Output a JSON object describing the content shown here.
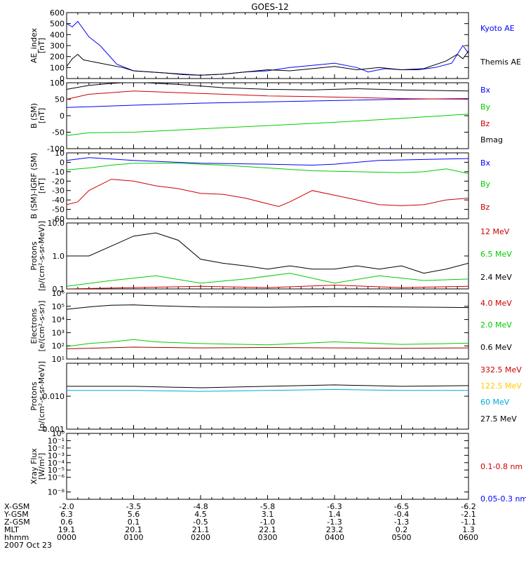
{
  "title": "GOES-12",
  "colors": {
    "black": "#000000",
    "blue": "#0000ff",
    "green": "#00cc00",
    "red": "#cc0000",
    "darkred": "#990000",
    "lime": "#33dd33",
    "cyan": "#00aadd",
    "yellow": "#ffcc00"
  },
  "chart_data": [
    {
      "type": "line",
      "ylabel": [
        "AE_index",
        "[nT]"
      ],
      "yscale": "linear",
      "ylim": [
        0,
        600
      ],
      "yticks": [
        "0",
        "100",
        "200",
        "300",
        "400",
        "500",
        "600"
      ],
      "yticks_values": [
        0,
        100,
        200,
        300,
        400,
        500,
        600
      ],
      "legend": [
        {
          "name": "Kyoto AE",
          "color": "#0000ff"
        },
        {
          "name": "Themis AE",
          "color": "#000000"
        }
      ],
      "series": [
        {
          "name": "Kyoto AE",
          "color": "#0000ff",
          "x": [
            0,
            5,
            10,
            20,
            30,
            45,
            60,
            75,
            90,
            105,
            120,
            140,
            160,
            180,
            200,
            220,
            240,
            260,
            270,
            285,
            300,
            315,
            330,
            345,
            355,
            360
          ],
          "y": [
            500,
            470,
            520,
            380,
            300,
            130,
            70,
            60,
            50,
            40,
            30,
            40,
            60,
            70,
            100,
            120,
            140,
            100,
            60,
            90,
            80,
            80,
            100,
            140,
            300,
            230
          ]
        },
        {
          "name": "Themis AE",
          "color": "#000000",
          "x": [
            0,
            5,
            10,
            15,
            25,
            35,
            50,
            60,
            75,
            90,
            105,
            120,
            140,
            160,
            180,
            200,
            220,
            240,
            260,
            280,
            300,
            320,
            340,
            350,
            355,
            360
          ],
          "y": [
            110,
            180,
            220,
            170,
            150,
            130,
            100,
            70,
            60,
            50,
            35,
            30,
            40,
            60,
            80,
            70,
            90,
            110,
            80,
            100,
            80,
            90,
            160,
            220,
            180,
            250
          ]
        }
      ]
    },
    {
      "type": "line",
      "ylabel": [
        "B (SM)",
        "[nT]"
      ],
      "yscale": "linear",
      "ylim": [
        -100,
        100
      ],
      "yticks": [
        "-100",
        "-50",
        "0",
        "50",
        "100"
      ],
      "yticks_values": [
        -100,
        -50,
        0,
        50,
        100
      ],
      "legend": [
        {
          "name": "Bx",
          "color": "#0000ff"
        },
        {
          "name": "By",
          "color": "#00cc00"
        },
        {
          "name": "Bz",
          "color": "#cc0000"
        },
        {
          "name": "Bmag",
          "color": "#000000"
        }
      ],
      "series": [
        {
          "name": "Bx",
          "color": "#0000ff",
          "x": [
            0,
            60,
            120,
            180,
            240,
            300,
            360
          ],
          "y": [
            25,
            32,
            38,
            42,
            46,
            50,
            52
          ]
        },
        {
          "name": "By",
          "color": "#00cc00",
          "x": [
            0,
            20,
            60,
            120,
            180,
            240,
            300,
            360
          ],
          "y": [
            -60,
            -52,
            -50,
            -40,
            -30,
            -20,
            -8,
            5
          ]
        },
        {
          "name": "Bz",
          "color": "#cc0000",
          "x": [
            0,
            20,
            40,
            60,
            100,
            140,
            180,
            220,
            260,
            300,
            360
          ],
          "y": [
            50,
            65,
            70,
            75,
            70,
            65,
            60,
            58,
            55,
            52,
            50
          ]
        },
        {
          "name": "Bmag",
          "color": "#000000",
          "x": [
            0,
            20,
            40,
            60,
            100,
            140,
            180,
            220,
            260,
            300,
            360
          ],
          "y": [
            80,
            92,
            98,
            102,
            95,
            85,
            80,
            78,
            82,
            78,
            75
          ]
        }
      ]
    },
    {
      "type": "line",
      "ylabel": [
        "B (SM)-IGRF (SM)",
        "[nT]"
      ],
      "yscale": "linear",
      "ylim": [
        -60,
        10
      ],
      "yticks": [
        "-60",
        "-50",
        "-40",
        "-30",
        "-20",
        "-10",
        "0",
        "10"
      ],
      "yticks_values": [
        -60,
        -50,
        -40,
        -30,
        -20,
        -10,
        0,
        10
      ],
      "legend": [
        {
          "name": "Bx",
          "color": "#0000ff"
        },
        {
          "name": "By",
          "color": "#00cc00"
        },
        {
          "name": "Bz",
          "color": "#cc0000"
        }
      ],
      "series": [
        {
          "name": "Bx",
          "color": "#0000ff",
          "x": [
            0,
            20,
            60,
            120,
            180,
            220,
            240,
            280,
            320,
            360
          ],
          "y": [
            2,
            5,
            2,
            -1,
            -2,
            -3,
            -2,
            2,
            3,
            4
          ]
        },
        {
          "name": "By",
          "color": "#00cc00",
          "x": [
            0,
            20,
            40,
            60,
            100,
            140,
            180,
            220,
            260,
            300,
            320,
            340,
            360
          ],
          "y": [
            -8,
            -6,
            -3,
            -1,
            -1,
            -3,
            -6,
            -9,
            -10,
            -11,
            -10,
            -7,
            -12
          ]
        },
        {
          "name": "Bz",
          "color": "#cc0000",
          "x": [
            0,
            10,
            20,
            40,
            60,
            80,
            100,
            120,
            140,
            160,
            180,
            190,
            200,
            220,
            240,
            260,
            280,
            300,
            320,
            340,
            360
          ],
          "y": [
            -45,
            -42,
            -30,
            -18,
            -20,
            -25,
            -28,
            -33,
            -34,
            -38,
            -44,
            -47,
            -42,
            -30,
            -35,
            -40,
            -45,
            -46,
            -45,
            -40,
            -38
          ]
        }
      ]
    },
    {
      "type": "line",
      "ylabel": [
        "Protons",
        "[p/(cm²-s-sr-MeV)]"
      ],
      "yscale": "log",
      "ylim": [
        0.1,
        10
      ],
      "yticks": [
        "0.1",
        "1.0",
        "10.0"
      ],
      "yticks_values": [
        0.1,
        1,
        10
      ],
      "legend": [
        {
          "name": "12 MeV",
          "color": "#cc0000"
        },
        {
          "name": "6.5 MeV",
          "color": "#00cc00"
        },
        {
          "name": "2.4 MeV",
          "color": "#000000"
        }
      ],
      "series": [
        {
          "name": "2.4 MeV",
          "color": "#000000",
          "x": [
            0,
            20,
            40,
            60,
            80,
            100,
            120,
            140,
            160,
            180,
            200,
            220,
            240,
            260,
            280,
            300,
            320,
            340,
            360
          ],
          "y": [
            1,
            1,
            2,
            4,
            5,
            3,
            0.8,
            0.6,
            0.5,
            0.4,
            0.5,
            0.4,
            0.4,
            0.5,
            0.4,
            0.5,
            0.3,
            0.4,
            0.6
          ]
        },
        {
          "name": "6.5 MeV",
          "color": "#00cc00",
          "x": [
            0,
            40,
            80,
            120,
            160,
            200,
            240,
            280,
            320,
            360
          ],
          "y": [
            0.12,
            0.18,
            0.25,
            0.15,
            0.2,
            0.3,
            0.15,
            0.25,
            0.18,
            0.2
          ]
        },
        {
          "name": "12 MeV",
          "color": "#cc0000",
          "x": [
            0,
            60,
            120,
            180,
            240,
            300,
            360
          ],
          "y": [
            0.1,
            0.11,
            0.12,
            0.11,
            0.13,
            0.11,
            0.12
          ]
        }
      ]
    },
    {
      "type": "line",
      "ylabel": [
        "Electrons",
        "[e/(cm²-s-sr)]"
      ],
      "yscale": "log",
      "ylim": [
        10,
        1000000
      ],
      "yticks": [
        "10¹",
        "10²",
        "10³",
        "10⁴",
        "10⁵",
        "10⁶"
      ],
      "yticks_values": [
        10,
        100,
        1000,
        10000,
        100000,
        1000000
      ],
      "legend": [
        {
          "name": "4.0 MeV",
          "color": "#cc0000"
        },
        {
          "name": "2.0 MeV",
          "color": "#00cc00"
        },
        {
          "name": "0.6 MeV",
          "color": "#000000"
        }
      ],
      "series": [
        {
          "name": "0.6 MeV",
          "color": "#000000",
          "x": [
            0,
            20,
            40,
            60,
            80,
            120,
            180,
            240,
            300,
            360
          ],
          "y": [
            60000,
            90000,
            120000,
            130000,
            110000,
            90000,
            85000,
            95000,
            90000,
            80000
          ]
        },
        {
          "name": "2.0 MeV",
          "color": "#00cc00",
          "x": [
            0,
            20,
            40,
            60,
            80,
            120,
            180,
            240,
            300,
            360
          ],
          "y": [
            90,
            150,
            200,
            300,
            200,
            150,
            120,
            200,
            130,
            160
          ]
        },
        {
          "name": "4.0 MeV",
          "color": "#990000",
          "x": [
            0,
            60,
            120,
            180,
            240,
            300,
            360
          ],
          "y": [
            60,
            80,
            70,
            75,
            70,
            65,
            70
          ]
        }
      ]
    },
    {
      "type": "line",
      "ylabel": [
        "Protons",
        "[p/(cm²-s-sr-MeV)]"
      ],
      "yscale": "log",
      "ylim": [
        0.001,
        0.1
      ],
      "yticks": [
        "0.001",
        "0.010"
      ],
      "yticks_values": [
        0.001,
        0.01
      ],
      "legend": [
        {
          "name": "332.5 MeV",
          "color": "#cc0000"
        },
        {
          "name": "122.5 MeV",
          "color": "#ffcc00"
        },
        {
          "name": "60 MeV",
          "color": "#00aadd"
        },
        {
          "name": "27.5 MeV",
          "color": "#000000"
        }
      ],
      "series": [
        {
          "name": "27.5 MeV",
          "color": "#000000",
          "x": [
            0,
            60,
            120,
            180,
            240,
            300,
            360
          ],
          "y": [
            0.02,
            0.02,
            0.018,
            0.02,
            0.022,
            0.02,
            0.021
          ]
        },
        {
          "name": "60 MeV",
          "color": "#00aadd",
          "x": [
            0,
            60,
            120,
            180,
            240,
            300,
            360
          ],
          "y": [
            0.015,
            0.015,
            0.014,
            0.015,
            0.016,
            0.015,
            0.015
          ]
        }
      ]
    },
    {
      "type": "line",
      "ylabel": [
        "Xray Flux",
        "[W/m²]"
      ],
      "yscale": "log",
      "ylim": [
        1e-09,
        1
      ],
      "yticks": [
        "10⁻⁸",
        "10⁻⁶",
        "10⁻⁵",
        "10⁻⁴",
        "10⁻³",
        "10⁻²",
        "10⁻¹",
        "10⁰"
      ],
      "yticks_values": [
        1e-08,
        1e-06,
        1e-05,
        0.0001,
        0.001,
        0.01,
        0.1,
        1
      ],
      "legend": [
        {
          "name": "0.1-0.8 nm",
          "color": "#cc0000"
        },
        {
          "name": "0.05-0.3 nm",
          "color": "#0000ff"
        }
      ],
      "series": []
    }
  ],
  "x_axis": {
    "xlim": [
      0,
      360
    ],
    "tick_minutes": [
      0,
      60,
      120,
      180,
      240,
      300,
      360
    ],
    "rows": [
      {
        "label": "X-GSM",
        "values": [
          "-2.0",
          "-3.5",
          "-4.8",
          "-5.8",
          "-6.3",
          "-6.5",
          "-6.2"
        ]
      },
      {
        "label": "Y-GSM",
        "values": [
          "6.3",
          "5.6",
          "4.5",
          "3.1",
          "1.4",
          "-0.4",
          "-2.1"
        ]
      },
      {
        "label": "Z-GSM",
        "values": [
          "0.6",
          "0.1",
          "-0.5",
          "-1.0",
          "-1.3",
          "-1.3",
          "-1.1"
        ]
      },
      {
        "label": "MLT",
        "values": [
          "19.1",
          "20.1",
          "21.1",
          "22.1",
          "23.2",
          "0.2",
          "1.3"
        ]
      },
      {
        "label": "hhmm",
        "values": [
          "0000",
          "0100",
          "0200",
          "0300",
          "0400",
          "0500",
          "0600"
        ]
      }
    ],
    "date": "2007 Oct 23"
  }
}
